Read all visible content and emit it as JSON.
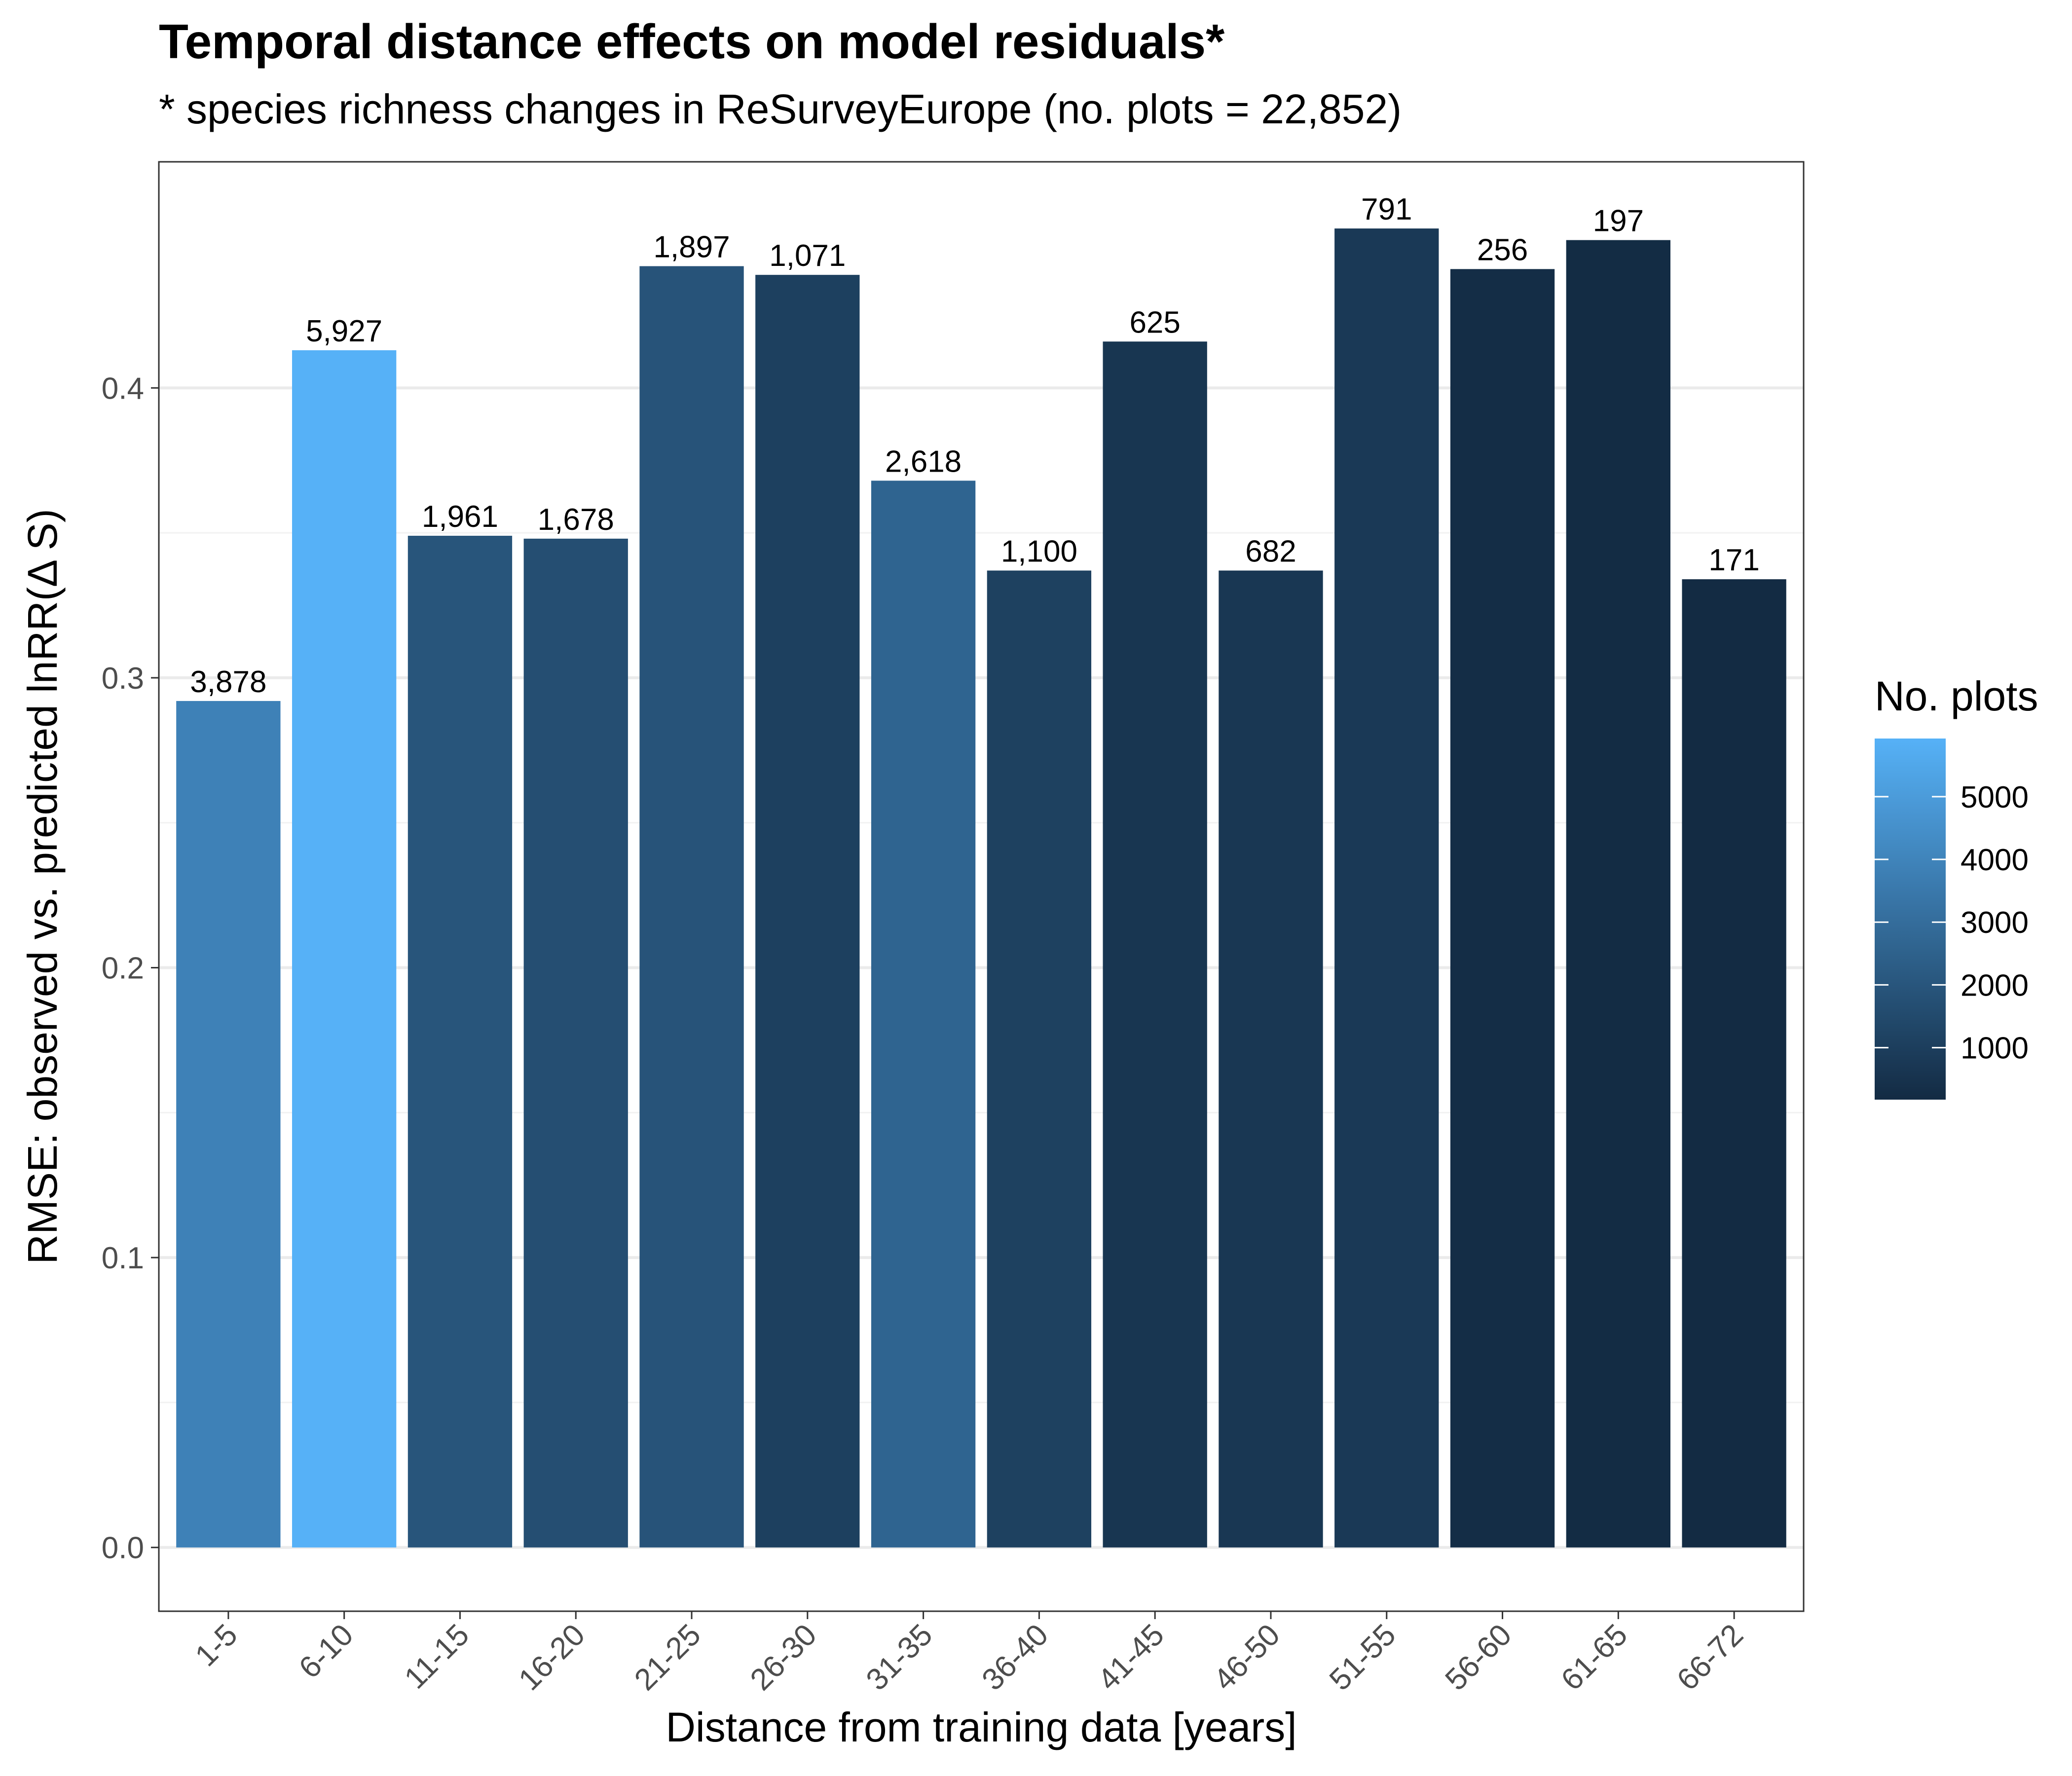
{
  "chart_data": {
    "type": "bar",
    "title": "Temporal distance effects on model residuals*",
    "subtitle": "* species richness changes in ReSurveyEurope (no. plots = 22,852)",
    "xlabel": "Distance from training data [years]",
    "ylabel": "RMSE: observed vs. predicted lnRR(Δ S)",
    "ylim": [
      -0.022,
      0.478
    ],
    "yticks": [
      "0.0",
      "0.1",
      "0.2",
      "0.3",
      "0.4"
    ],
    "grid": true,
    "categories": [
      "1-5",
      "6-10",
      "11-15",
      "16-20",
      "21-25",
      "26-30",
      "31-35",
      "36-40",
      "41-45",
      "46-50",
      "51-55",
      "56-60",
      "61-65",
      "66-72"
    ],
    "values": [
      0.292,
      0.413,
      0.349,
      0.348,
      0.442,
      0.439,
      0.368,
      0.337,
      0.416,
      0.337,
      0.455,
      0.441,
      0.451,
      0.334
    ],
    "counts": [
      3878,
      5927,
      1961,
      1678,
      1897,
      1071,
      2618,
      1100,
      625,
      682,
      791,
      256,
      197,
      171
    ],
    "count_labels": [
      "3,878",
      "5,927",
      "1,961",
      "1,678",
      "1,897",
      "1,071",
      "2,618",
      "1,100",
      "625",
      "682",
      "791",
      "256",
      "197",
      "171"
    ],
    "legend": {
      "title": "No. plots",
      "position": "right",
      "ticks": [
        "5000",
        "4000",
        "3000",
        "2000",
        "1000"
      ],
      "tick_values": [
        5000,
        4000,
        3000,
        2000,
        1000
      ],
      "range": [
        171,
        5927
      ],
      "color_low": "#132B43",
      "color_high": "#56B1F7"
    }
  }
}
